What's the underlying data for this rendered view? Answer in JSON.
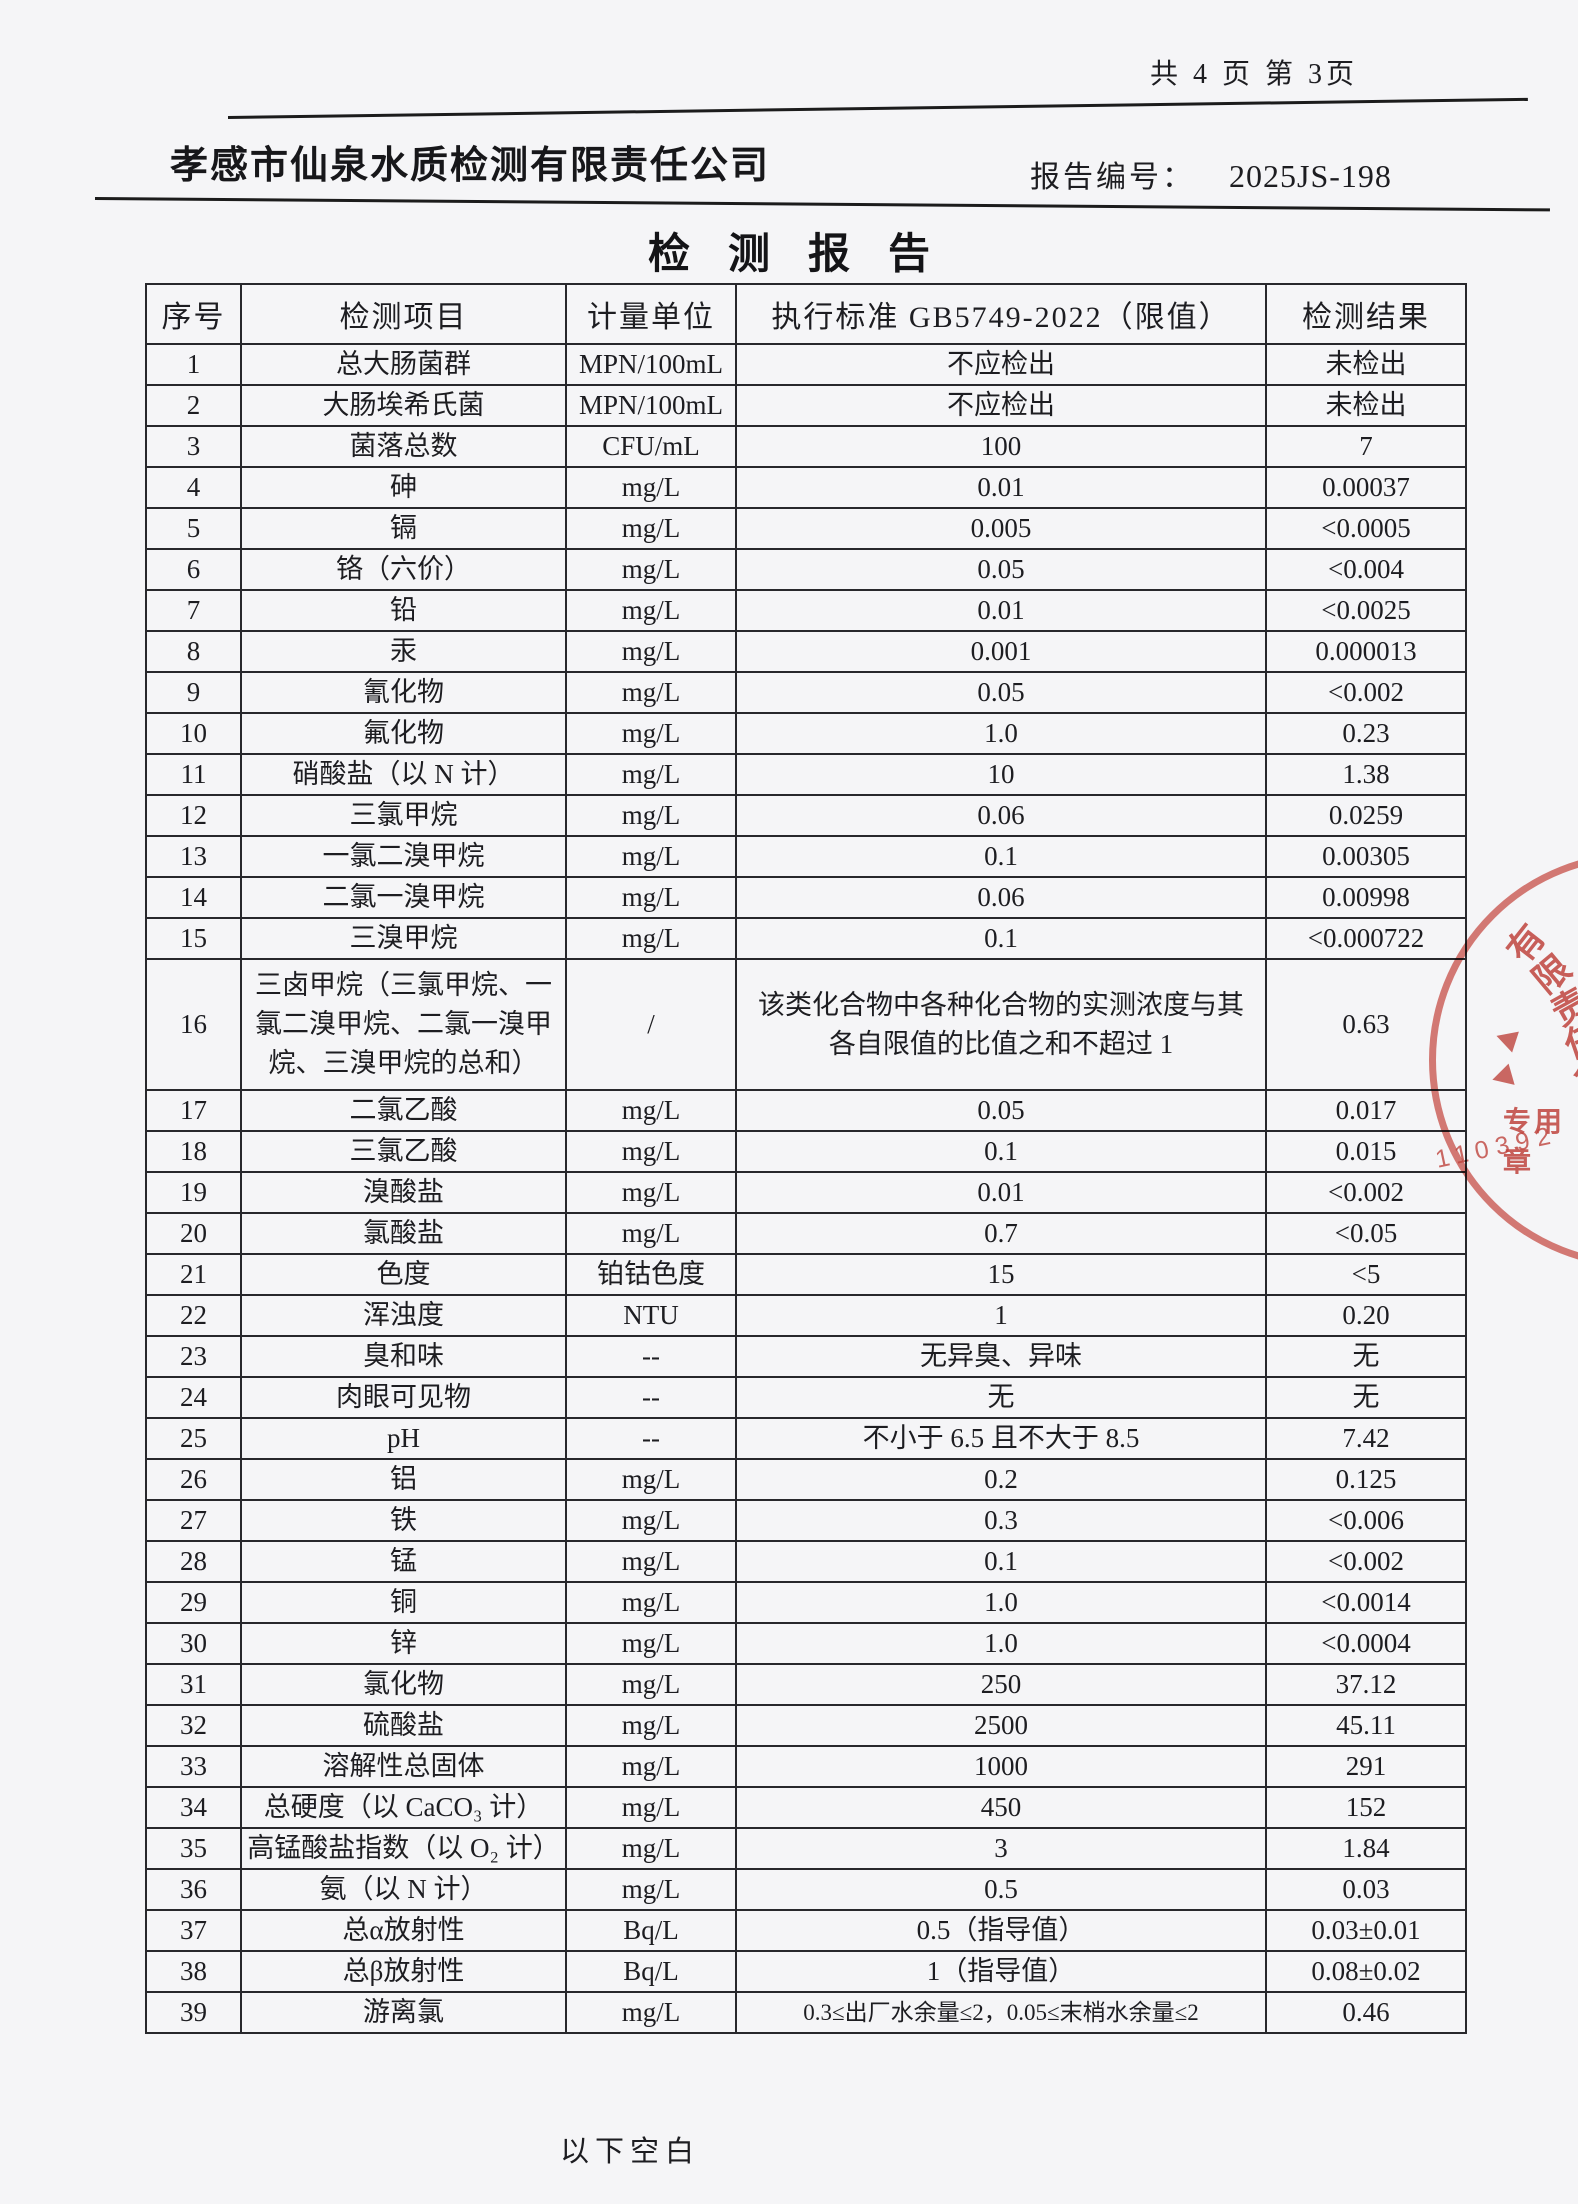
{
  "page": {
    "page_info": "共 4 页  第 3页",
    "company": "孝感市仙泉水质检测有限责任公司",
    "report_no_label": "报告编号：",
    "report_no": "2025JS-198",
    "title": "检测报告",
    "footer_note": "以下空白"
  },
  "table": {
    "headers": [
      "序号",
      "检测项目",
      "计量单位",
      "执行标准 GB5749-2022（限值）",
      "检测结果"
    ],
    "rows": [
      [
        "1",
        "总大肠菌群",
        "MPN/100mL",
        "不应检出",
        "未检出"
      ],
      [
        "2",
        "大肠埃希氏菌",
        "MPN/100mL",
        "不应检出",
        "未检出"
      ],
      [
        "3",
        "菌落总数",
        "CFU/mL",
        "100",
        "7"
      ],
      [
        "4",
        "砷",
        "mg/L",
        "0.01",
        "0.00037"
      ],
      [
        "5",
        "镉",
        "mg/L",
        "0.005",
        "<0.0005"
      ],
      [
        "6",
        "铬（六价）",
        "mg/L",
        "0.05",
        "<0.004"
      ],
      [
        "7",
        "铅",
        "mg/L",
        "0.01",
        "<0.0025"
      ],
      [
        "8",
        "汞",
        "mg/L",
        "0.001",
        "0.000013"
      ],
      [
        "9",
        "氰化物",
        "mg/L",
        "0.05",
        "<0.002"
      ],
      [
        "10",
        "氟化物",
        "mg/L",
        "1.0",
        "0.23"
      ],
      [
        "11",
        "硝酸盐（以 N 计）",
        "mg/L",
        "10",
        "1.38"
      ],
      [
        "12",
        "三氯甲烷",
        "mg/L",
        "0.06",
        "0.0259"
      ],
      [
        "13",
        "一氯二溴甲烷",
        "mg/L",
        "0.1",
        "0.00305"
      ],
      [
        "14",
        "二氯一溴甲烷",
        "mg/L",
        "0.06",
        "0.00998"
      ],
      [
        "15",
        "三溴甲烷",
        "mg/L",
        "0.1",
        "<0.000722"
      ],
      [
        "16",
        "三卤甲烷（三氯甲烷、一氯二溴甲烷、二氯一溴甲烷、三溴甲烷的总和）",
        "/",
        "该类化合物中各种化合物的实测浓度与其各自限值的比值之和不超过 1",
        "0.63"
      ],
      [
        "17",
        "二氯乙酸",
        "mg/L",
        "0.05",
        "0.017"
      ],
      [
        "18",
        "三氯乙酸",
        "mg/L",
        "0.1",
        "0.015"
      ],
      [
        "19",
        "溴酸盐",
        "mg/L",
        "0.01",
        "<0.002"
      ],
      [
        "20",
        "氯酸盐",
        "mg/L",
        "0.7",
        "<0.05"
      ],
      [
        "21",
        "色度",
        "铂钴色度",
        "15",
        "<5"
      ],
      [
        "22",
        "浑浊度",
        "NTU",
        "1",
        "0.20"
      ],
      [
        "23",
        "臭和味",
        "--",
        "无异臭、异味",
        "无"
      ],
      [
        "24",
        "肉眼可见物",
        "--",
        "无",
        "无"
      ],
      [
        "25",
        "pH",
        "--",
        "不小于 6.5 且不大于 8.5",
        "7.42"
      ],
      [
        "26",
        "铝",
        "mg/L",
        "0.2",
        "0.125"
      ],
      [
        "27",
        "铁",
        "mg/L",
        "0.3",
        "<0.006"
      ],
      [
        "28",
        "锰",
        "mg/L",
        "0.1",
        "<0.002"
      ],
      [
        "29",
        "铜",
        "mg/L",
        "1.0",
        "<0.0014"
      ],
      [
        "30",
        "锌",
        "mg/L",
        "1.0",
        "<0.0004"
      ],
      [
        "31",
        "氯化物",
        "mg/L",
        "250",
        "37.12"
      ],
      [
        "32",
        "硫酸盐",
        "mg/L",
        "2500",
        "45.11"
      ],
      [
        "33",
        "溶解性总固体",
        "mg/L",
        "1000",
        "291"
      ],
      [
        "34",
        "总硬度（以 CaCO₃ 计）",
        "mg/L",
        "450",
        "152"
      ],
      [
        "35",
        "高锰酸盐指数（以 O₂ 计）",
        "mg/L",
        "3",
        "1.84"
      ],
      [
        "36",
        "氨（以 N 计）",
        "mg/L",
        "0.5",
        "0.03"
      ],
      [
        "37",
        "总α放射性",
        "Bq/L",
        "0.5（指导值）",
        "0.03±0.01"
      ],
      [
        "38",
        "总β放射性",
        "Bq/L",
        "1（指导值）",
        "0.08±0.02"
      ],
      [
        "39",
        "游离氯",
        "mg/L",
        "0.3≤出厂水余量≤2，0.05≤末梢水余量≤2",
        "0.46"
      ]
    ]
  },
  "stamp": {
    "arc_chars": "有限责任公",
    "label": "专用章",
    "number": "110392",
    "color": "#cf5149"
  }
}
